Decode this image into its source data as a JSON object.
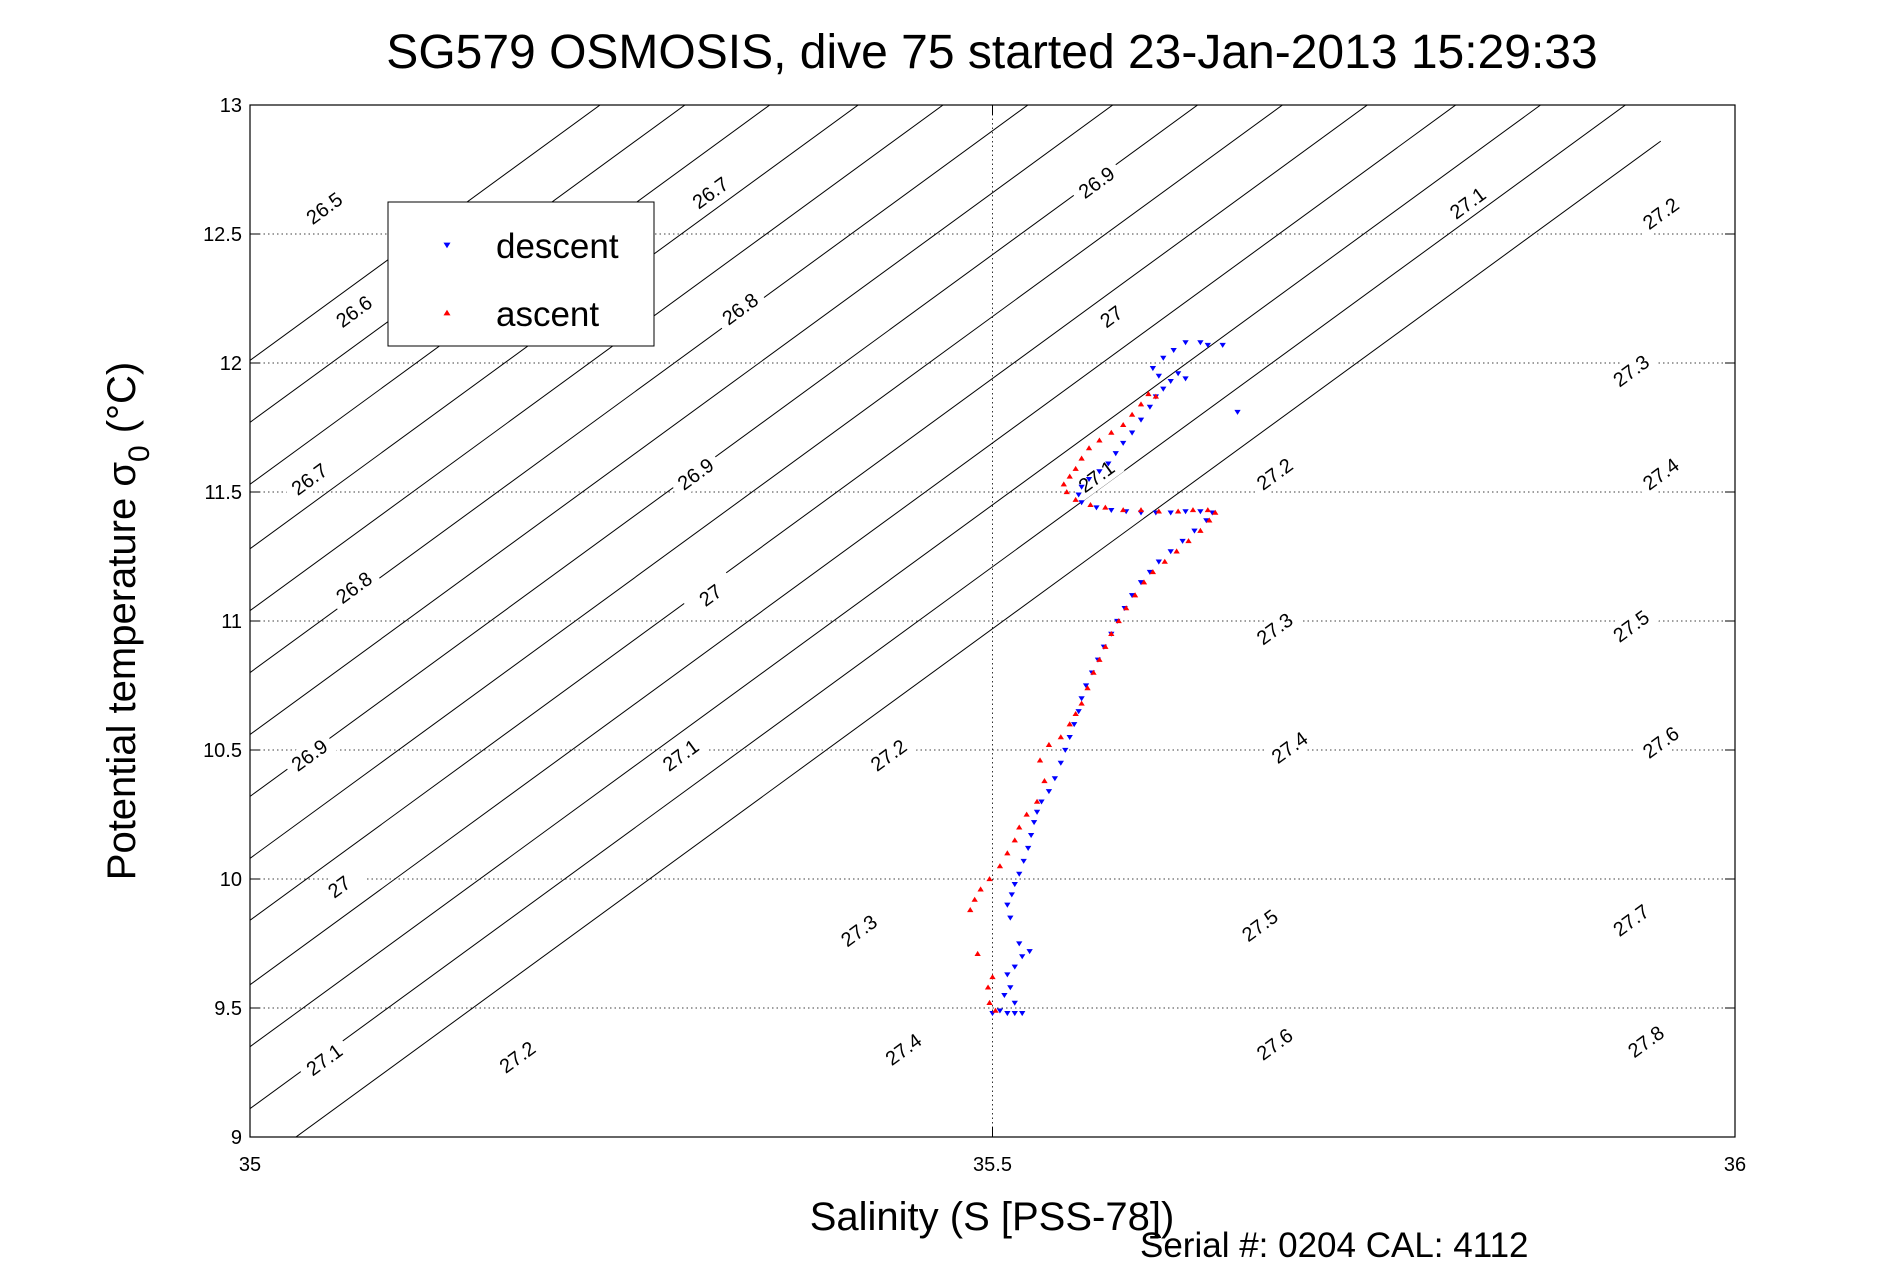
{
  "chart_data": {
    "type": "scatter",
    "title": "SG579 OSMOSIS, dive 75 started 23-Jan-2013 15:29:33",
    "xlabel": "Salinity (S [PSS-78])",
    "ylabel_main": "Potential temperature σ",
    "ylabel_sub": "0",
    "ylabel_unit": "(°C)",
    "footer": "Serial #: 0204  CAL: 4112",
    "xlim": [
      35,
      36
    ],
    "ylim": [
      9,
      13
    ],
    "xticks": [
      "35",
      "35.5",
      "36"
    ],
    "yticks": [
      "9",
      "9.5",
      "10",
      "10.5",
      "11",
      "11.5",
      "12",
      "12.5",
      "13"
    ],
    "grid": true,
    "legend_position": "top-left",
    "colors": {
      "descent": "#0000ff",
      "ascent": "#ff0000",
      "contour": "#000000"
    },
    "contours": [
      {
        "level": "26.5",
        "points": [
          [
            34.95,
            11.8
          ],
          [
            35.95,
            16.0
          ]
        ],
        "labels": [
          [
            35.05,
            12.6
          ]
        ]
      },
      {
        "level": "26.6",
        "points": [
          [
            34.95,
            11.56
          ],
          [
            35.95,
            15.76
          ]
        ],
        "labels": [
          [
            35.07,
            12.2
          ]
        ]
      },
      {
        "level": "26.7",
        "points": [
          [
            34.95,
            11.32
          ],
          [
            35.95,
            15.52
          ]
        ],
        "labels": [
          [
            35.04,
            11.55
          ],
          [
            35.31,
            12.66
          ]
        ]
      },
      {
        "level": "26.8",
        "points": [
          [
            34.95,
            11.07
          ],
          [
            35.95,
            15.27
          ]
        ],
        "labels": [
          [
            35.07,
            11.13
          ],
          [
            35.33,
            12.21
          ]
        ]
      },
      {
        "level": "26.9",
        "points": [
          [
            34.95,
            10.83
          ],
          [
            35.95,
            15.03
          ]
        ],
        "labels": [
          [
            35.04,
            10.48
          ],
          [
            35.3,
            11.57
          ],
          [
            35.57,
            12.7
          ]
        ]
      },
      {
        "level": "27",
        "points": [
          [
            34.95,
            10.59
          ],
          [
            35.95,
            14.79
          ]
        ],
        "labels": [
          [
            35.06,
            9.97
          ],
          [
            35.31,
            11.1
          ],
          [
            35.58,
            12.18
          ]
        ]
      },
      {
        "level": "27.1",
        "points": [
          [
            34.95,
            10.35
          ],
          [
            35.95,
            14.55
          ]
        ],
        "labels": [
          [
            35.05,
            9.3
          ],
          [
            35.29,
            10.48
          ],
          [
            35.57,
            11.56
          ],
          [
            35.82,
            12.62
          ]
        ]
      },
      {
        "level": "27.2",
        "points": [
          [
            34.95,
            10.11
          ],
          [
            35.95,
            14.31
          ]
        ],
        "labels": [
          [
            35.18,
            9.31
          ],
          [
            35.43,
            10.48
          ],
          [
            35.69,
            11.57
          ],
          [
            35.95,
            12.58
          ]
        ]
      },
      {
        "level": "27.3",
        "points": [
          [
            34.95,
            9.87
          ],
          [
            35.95,
            14.07
          ]
        ],
        "labels": [
          [
            35.41,
            9.8
          ],
          [
            35.69,
            10.97
          ],
          [
            35.93,
            11.97
          ]
        ]
      },
      {
        "level": "27.4",
        "points": [
          [
            34.95,
            9.63
          ],
          [
            35.95,
            13.83
          ]
        ],
        "labels": [
          [
            35.44,
            9.34
          ],
          [
            35.7,
            10.51
          ],
          [
            35.95,
            11.57
          ]
        ]
      },
      {
        "level": "27.5",
        "points": [
          [
            34.95,
            9.38
          ],
          [
            35.95,
            13.58
          ]
        ],
        "labels": [
          [
            35.68,
            9.82
          ],
          [
            35.93,
            10.98
          ]
        ]
      },
      {
        "level": "27.6",
        "points": [
          [
            34.95,
            9.14
          ],
          [
            35.95,
            13.34
          ]
        ],
        "labels": [
          [
            35.69,
            9.36
          ],
          [
            35.95,
            10.53
          ]
        ]
      },
      {
        "level": "27.7",
        "points": [
          [
            34.95,
            8.9
          ],
          [
            35.95,
            13.1
          ]
        ],
        "labels": [
          [
            35.93,
            9.84
          ]
        ]
      },
      {
        "level": "27.8",
        "points": [
          [
            34.95,
            8.66
          ],
          [
            35.95,
            12.86
          ]
        ],
        "labels": [
          [
            35.94,
            9.37
          ]
        ]
      }
    ],
    "series": [
      {
        "name": "descent",
        "marker": "triangle-down",
        "points": [
          [
            35.5,
            9.48
          ],
          [
            35.505,
            9.49
          ],
          [
            35.51,
            9.48
          ],
          [
            35.515,
            9.48
          ],
          [
            35.52,
            9.48
          ],
          [
            35.515,
            9.52
          ],
          [
            35.508,
            9.55
          ],
          [
            35.512,
            9.58
          ],
          [
            35.51,
            9.63
          ],
          [
            35.515,
            9.66
          ],
          [
            35.52,
            9.7
          ],
          [
            35.518,
            9.75
          ],
          [
            35.525,
            9.72
          ],
          [
            35.512,
            9.85
          ],
          [
            35.51,
            9.9
          ],
          [
            35.513,
            9.94
          ],
          [
            35.515,
            9.98
          ],
          [
            35.518,
            10.02
          ],
          [
            35.521,
            10.07
          ],
          [
            35.524,
            10.12
          ],
          [
            35.526,
            10.17
          ],
          [
            35.528,
            10.22
          ],
          [
            35.53,
            10.26
          ],
          [
            35.533,
            10.3
          ],
          [
            35.538,
            10.34
          ],
          [
            35.542,
            10.39
          ],
          [
            35.546,
            10.45
          ],
          [
            35.549,
            10.5
          ],
          [
            35.552,
            10.55
          ],
          [
            35.555,
            10.6
          ],
          [
            35.558,
            10.65
          ],
          [
            35.56,
            10.7
          ],
          [
            35.563,
            10.75
          ],
          [
            35.567,
            10.8
          ],
          [
            35.571,
            10.85
          ],
          [
            35.575,
            10.9
          ],
          [
            35.58,
            10.95
          ],
          [
            35.584,
            11.0
          ],
          [
            35.589,
            11.05
          ],
          [
            35.594,
            11.1
          ],
          [
            35.6,
            11.15
          ],
          [
            35.606,
            11.19
          ],
          [
            35.612,
            11.23
          ],
          [
            35.62,
            11.27
          ],
          [
            35.628,
            11.31
          ],
          [
            35.636,
            11.35
          ],
          [
            35.644,
            11.39
          ],
          [
            35.648,
            11.42
          ],
          [
            35.64,
            11.425
          ],
          [
            35.63,
            11.425
          ],
          [
            35.62,
            11.42
          ],
          [
            35.61,
            11.42
          ],
          [
            35.6,
            11.42
          ],
          [
            35.59,
            11.425
          ],
          [
            35.58,
            11.43
          ],
          [
            35.57,
            11.44
          ],
          [
            35.56,
            11.46
          ],
          [
            35.558,
            11.49
          ],
          [
            35.56,
            11.52
          ],
          [
            35.565,
            11.55
          ],
          [
            35.572,
            11.58
          ],
          [
            35.578,
            11.61
          ],
          [
            35.583,
            11.65
          ],
          [
            35.588,
            11.69
          ],
          [
            35.594,
            11.73
          ],
          [
            35.6,
            11.78
          ],
          [
            35.606,
            11.83
          ],
          [
            35.61,
            11.87
          ],
          [
            35.615,
            11.9
          ],
          [
            35.62,
            11.93
          ],
          [
            35.625,
            11.96
          ],
          [
            35.63,
            11.94
          ],
          [
            35.612,
            11.95
          ],
          [
            35.608,
            11.98
          ],
          [
            35.615,
            12.02
          ],
          [
            35.622,
            12.05
          ],
          [
            35.63,
            12.08
          ],
          [
            35.64,
            12.08
          ],
          [
            35.645,
            12.07
          ],
          [
            35.655,
            12.07
          ],
          [
            35.665,
            11.81
          ]
        ]
      },
      {
        "name": "ascent",
        "marker": "triangle-up",
        "points": [
          [
            35.502,
            9.49
          ],
          [
            35.498,
            9.52
          ],
          [
            35.497,
            9.58
          ],
          [
            35.5,
            9.62
          ],
          [
            35.49,
            9.71
          ],
          [
            35.485,
            9.88
          ],
          [
            35.488,
            9.92
          ],
          [
            35.492,
            9.96
          ],
          [
            35.498,
            10.0
          ],
          [
            35.505,
            10.05
          ],
          [
            35.51,
            10.1
          ],
          [
            35.515,
            10.15
          ],
          [
            35.518,
            10.2
          ],
          [
            35.523,
            10.25
          ],
          [
            35.53,
            10.3
          ],
          [
            35.535,
            10.38
          ],
          [
            35.532,
            10.46
          ],
          [
            35.538,
            10.52
          ],
          [
            35.546,
            10.55
          ],
          [
            35.552,
            10.6
          ],
          [
            35.556,
            10.64
          ],
          [
            35.56,
            10.68
          ],
          [
            35.564,
            10.74
          ],
          [
            35.568,
            10.8
          ],
          [
            35.572,
            10.85
          ],
          [
            35.576,
            10.9
          ],
          [
            35.58,
            10.95
          ],
          [
            35.585,
            11.0
          ],
          [
            35.59,
            11.05
          ],
          [
            35.596,
            11.1
          ],
          [
            35.602,
            11.15
          ],
          [
            35.608,
            11.19
          ],
          [
            35.616,
            11.23
          ],
          [
            35.624,
            11.27
          ],
          [
            35.632,
            11.31
          ],
          [
            35.64,
            11.35
          ],
          [
            35.646,
            11.39
          ],
          [
            35.65,
            11.42
          ],
          [
            35.645,
            11.43
          ],
          [
            35.635,
            11.43
          ],
          [
            35.625,
            11.425
          ],
          [
            35.612,
            11.425
          ],
          [
            35.6,
            11.43
          ],
          [
            35.588,
            11.43
          ],
          [
            35.576,
            11.44
          ],
          [
            35.566,
            11.45
          ],
          [
            35.556,
            11.47
          ],
          [
            35.55,
            11.5
          ],
          [
            35.548,
            11.53
          ],
          [
            35.552,
            11.56
          ],
          [
            35.556,
            11.59
          ],
          [
            35.56,
            11.63
          ],
          [
            35.565,
            11.67
          ],
          [
            35.572,
            11.7
          ],
          [
            35.58,
            11.73
          ],
          [
            35.588,
            11.76
          ],
          [
            35.594,
            11.8
          ],
          [
            35.6,
            11.84
          ],
          [
            35.605,
            11.88
          ],
          [
            35.61,
            11.87
          ]
        ]
      }
    ]
  }
}
